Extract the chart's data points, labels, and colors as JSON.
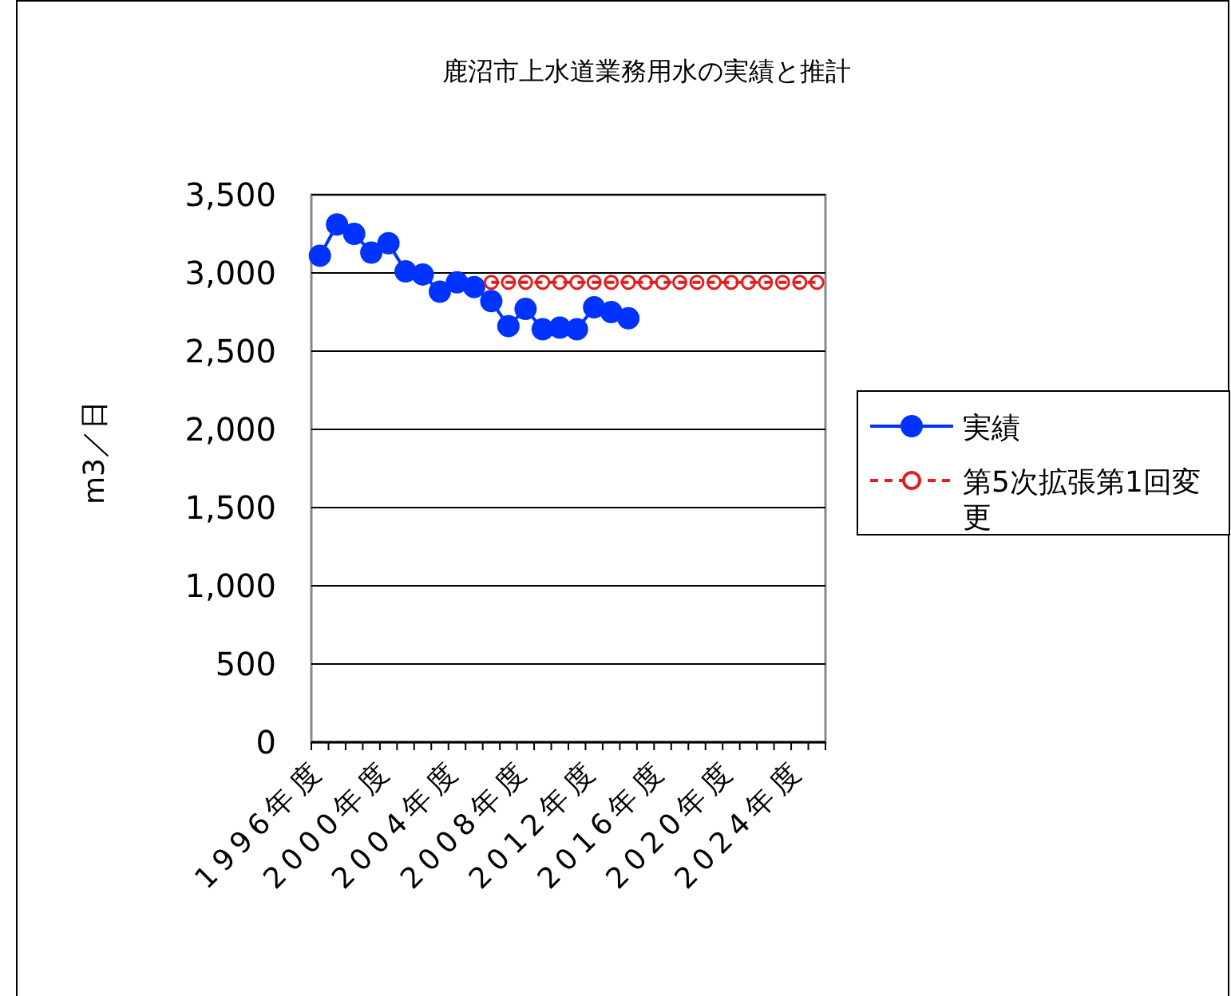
{
  "chart_data": {
    "type": "line",
    "title": "鹿沼市上水道業務用水の実績と推計",
    "ylabel": "m3／日",
    "categories": [
      "1996年度",
      null,
      null,
      null,
      "2000年度",
      null,
      null,
      null,
      "2004年度",
      null,
      null,
      null,
      "2008年度",
      null,
      null,
      null,
      "2012年度",
      null,
      null,
      null,
      "2016年度",
      null,
      null,
      null,
      "2020年度",
      null,
      null,
      null,
      "2024年度",
      null
    ],
    "series": [
      {
        "name": "実績",
        "color": "#0033ff",
        "marker": "circle",
        "line_style": "solid",
        "values": [
          3110,
          3310,
          3250,
          3130,
          3190,
          3010,
          2990,
          2880,
          2940,
          2910,
          2820,
          2660,
          2770,
          2640,
          2650,
          2640,
          2780,
          2750,
          2710,
          null,
          null,
          null,
          null,
          null,
          null,
          null,
          null,
          null,
          null,
          null
        ]
      },
      {
        "name": "第5次拡張第1回変更",
        "color": "#e02020",
        "marker": "circle",
        "line_style": "dashed",
        "values": [
          null,
          null,
          null,
          null,
          null,
          null,
          null,
          null,
          null,
          null,
          2940,
          2940,
          2940,
          2940,
          2940,
          2940,
          2940,
          2940,
          2940,
          2940,
          2940,
          2940,
          2940,
          2940,
          2940,
          2940,
          2940,
          2940,
          2940,
          2940
        ]
      }
    ],
    "ylim": [
      0,
      3500
    ],
    "yticks": [
      {
        "value": 0,
        "label": "0"
      },
      {
        "value": 500,
        "label": "500"
      },
      {
        "value": 1000,
        "label": "1,000"
      },
      {
        "value": 1500,
        "label": "1,500"
      },
      {
        "value": 2000,
        "label": "2,000"
      },
      {
        "value": 2500,
        "label": "2,500"
      },
      {
        "value": 3000,
        "label": "3,000"
      },
      {
        "value": 3500,
        "label": "3,500"
      }
    ],
    "grid": "y",
    "legend": "right"
  }
}
